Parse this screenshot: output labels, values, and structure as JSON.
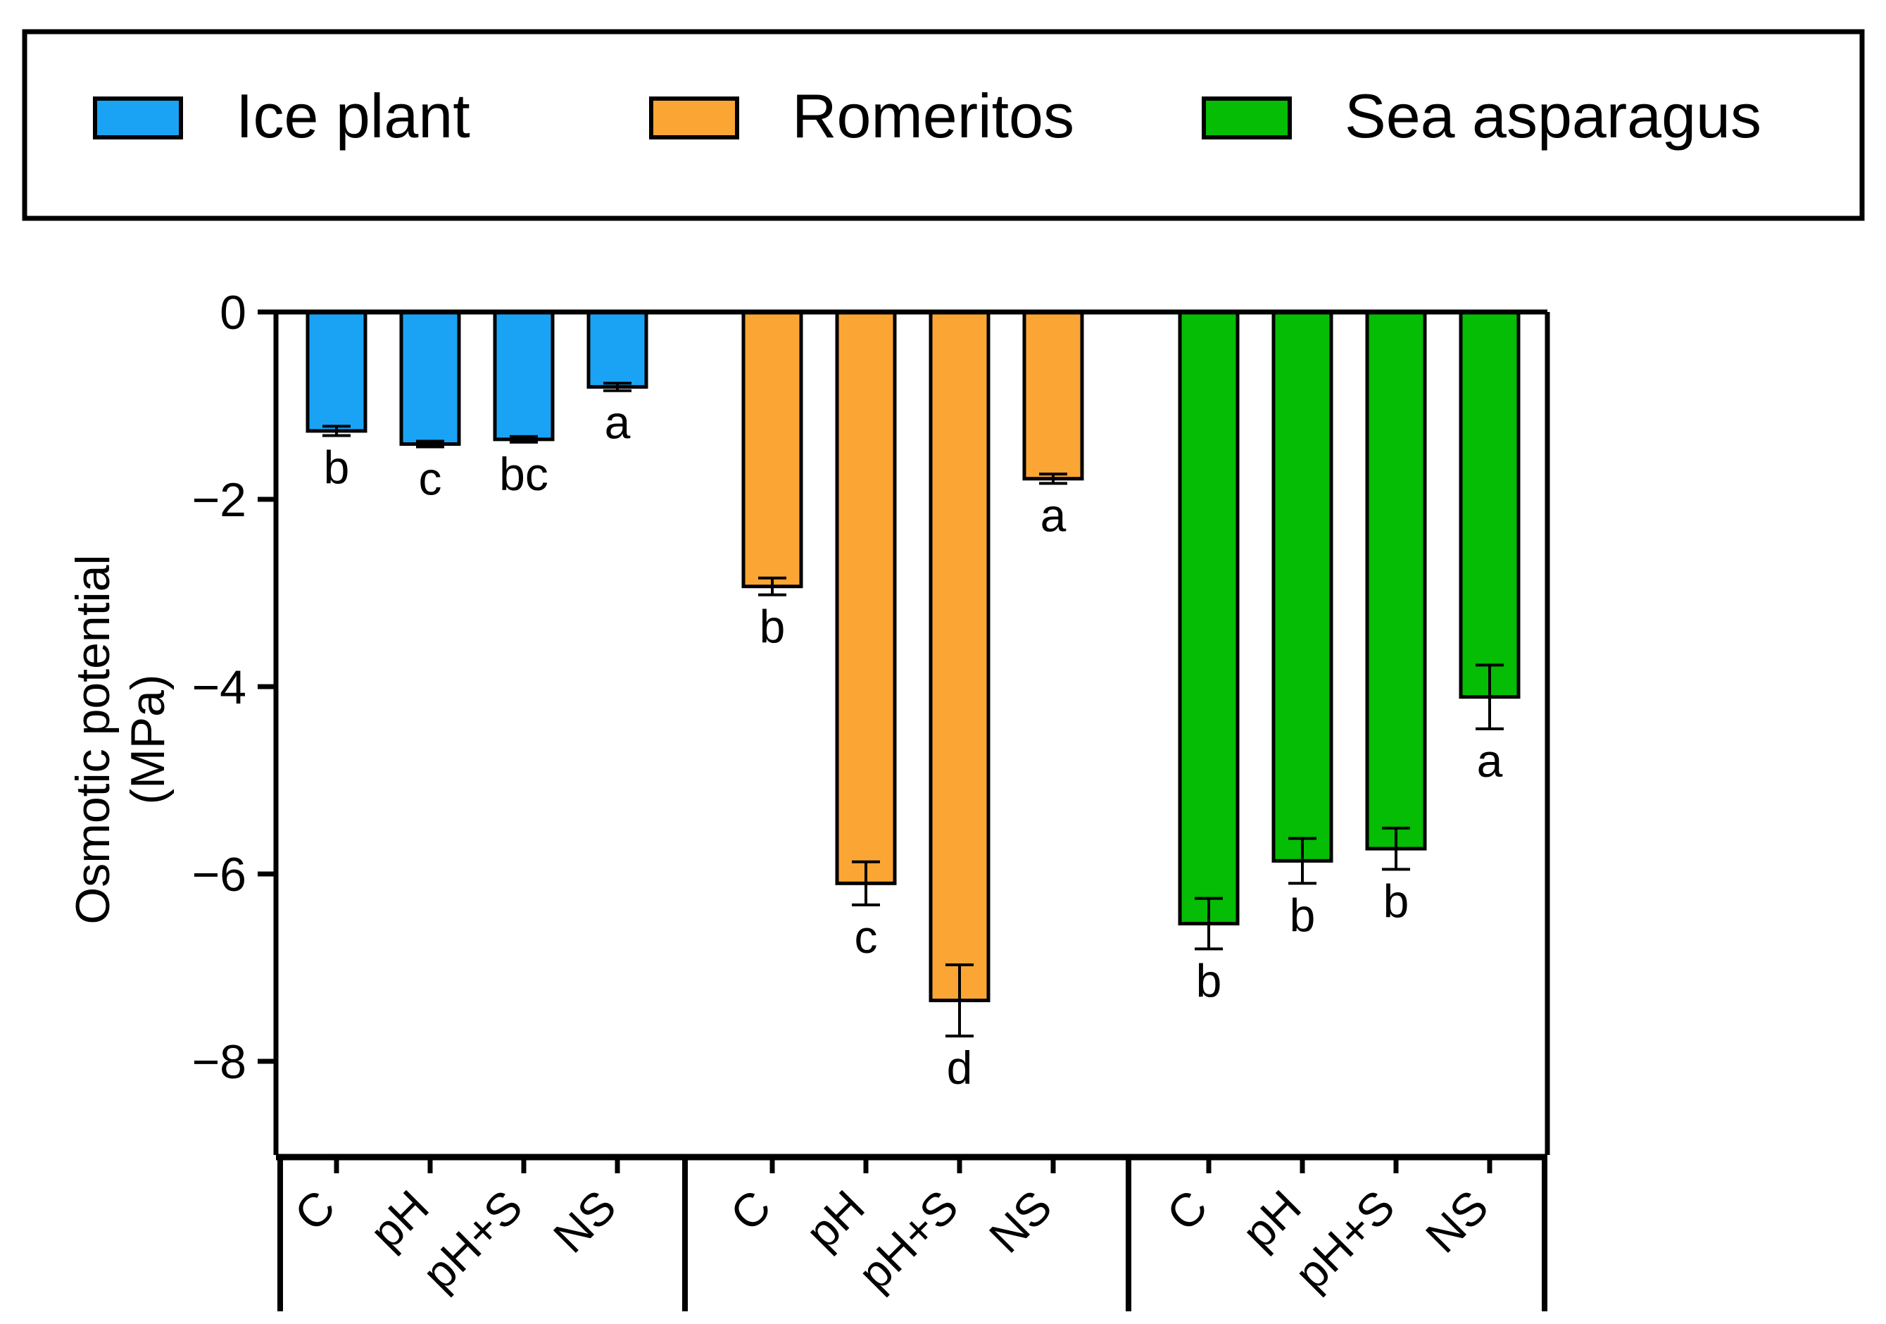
{
  "colors": {
    "ice_plant": "#1aa3f5",
    "romeritos": "#fba634",
    "sea_asparagus": "#04bd04",
    "axis": "#000000"
  },
  "chart_data": {
    "type": "bar",
    "title": "",
    "xlabel": "",
    "ylabel_lines": [
      "Osmotic potential",
      "(MPa)"
    ],
    "ylim": [
      -9,
      0
    ],
    "yticks": [
      0,
      -2,
      -4,
      -6,
      -8
    ],
    "ytick_labels": [
      "0",
      "−2",
      "−4",
      "−6",
      "−8"
    ],
    "categories": [
      "C",
      "pH",
      "pH+S",
      "NS"
    ],
    "legend": {
      "position": "top",
      "entries": [
        "Ice plant",
        "Romeritos",
        "Sea asparagus"
      ]
    },
    "series": [
      {
        "name": "Ice plant",
        "color": "#1aa3f5",
        "values": [
          -1.27,
          -1.41,
          -1.36,
          -0.8
        ],
        "errors": [
          0.05,
          0.03,
          0.03,
          0.04
        ],
        "letters": [
          "b",
          "c",
          "bc",
          "a"
        ]
      },
      {
        "name": "Romeritos",
        "color": "#fba634",
        "values": [
          -2.93,
          -6.1,
          -7.35,
          -1.78
        ],
        "errors": [
          0.09,
          0.23,
          0.38,
          0.05
        ],
        "letters": [
          "b",
          "c",
          "d",
          "a"
        ]
      },
      {
        "name": "Sea asparagus",
        "color": "#04bd04",
        "values": [
          -6.53,
          -5.86,
          -5.73,
          -4.11
        ],
        "errors": [
          0.27,
          0.24,
          0.22,
          0.34
        ],
        "letters": [
          "b",
          "b",
          "b",
          "a"
        ]
      }
    ]
  }
}
